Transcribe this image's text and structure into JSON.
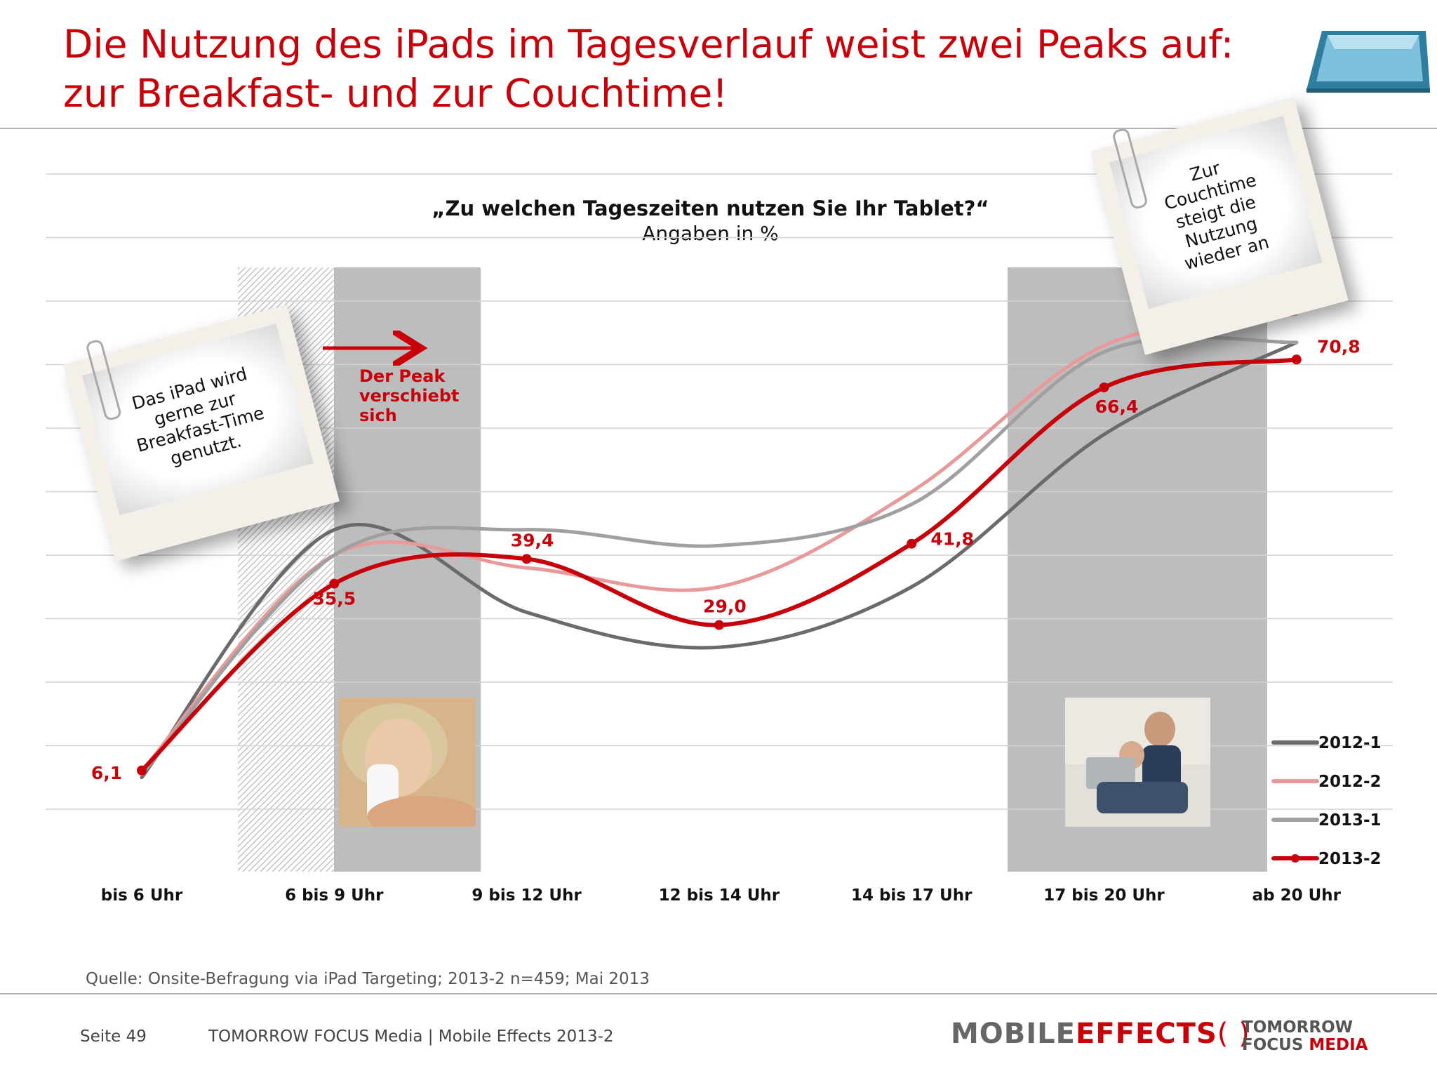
{
  "header": {
    "title_line1": "Die Nutzung des iPads im Tagesverlauf weist zwei Peaks auf:",
    "title_line2": "zur Breakfast- und zur Couchtime!"
  },
  "question": {
    "title": "„Zu welchen Tageszeiten nutzen Sie Ihr Tablet?“",
    "subtitle": "Angaben in %"
  },
  "notes": {
    "breakfast": "Das iPad wird gerne zur Breakfast-Time genutzt.",
    "couchtime": "Zur Couchtime steigt die Nutzung wieder an",
    "peak_shift": "Der Peak verschiebt sich"
  },
  "chart_data": {
    "type": "line",
    "categories": [
      "bis 6 Uhr",
      "6 bis 9 Uhr",
      "9 bis 12 Uhr",
      "12 bis 14 Uhr",
      "14 bis 17 Uhr",
      "17 bis 20 Uhr",
      "ab 20 Uhr"
    ],
    "ylim": [
      0,
      100
    ],
    "grid": true,
    "legend_position": "bottom-right",
    "series": [
      {
        "name": "2012-1",
        "color": "#6b6b6b",
        "values": [
          5,
          44,
          31,
          25.5,
          35,
          59,
          73.5
        ]
      },
      {
        "name": "2012-2",
        "color": "#e89a9a",
        "values": [
          6,
          40,
          38,
          35,
          50,
          73,
          78
        ]
      },
      {
        "name": "2013-1",
        "color": "#a0a0a0",
        "values": [
          5.5,
          40,
          44,
          41.5,
          48,
          72,
          73.5
        ]
      },
      {
        "name": "2013-2",
        "color": "#c8000a",
        "values": [
          6.1,
          35.5,
          39.4,
          29.0,
          41.8,
          66.4,
          70.8
        ],
        "labels": [
          "6,1",
          "35,5",
          "39,4",
          "29,0",
          "41,8",
          "66,4",
          "70,8"
        ]
      }
    ],
    "highlight_bands": [
      "6 bis 9 Uhr",
      "17 bis 20 Uhr"
    ]
  },
  "source": "Quelle: Onsite-Befragung via iPad Targeting; 2013-2 n=459; Mai 2013",
  "footer": {
    "page": "Seite 49",
    "company": "TOMORROW FOCUS Media  |  Mobile Effects 2013-2",
    "logo_mobile": "MOBILE",
    "logo_effects": "EFFECTS",
    "logo_tf_line1": "TOMORROW",
    "logo_tf_focus": "FOCUS",
    "logo_tf_media": "MEDIA"
  }
}
